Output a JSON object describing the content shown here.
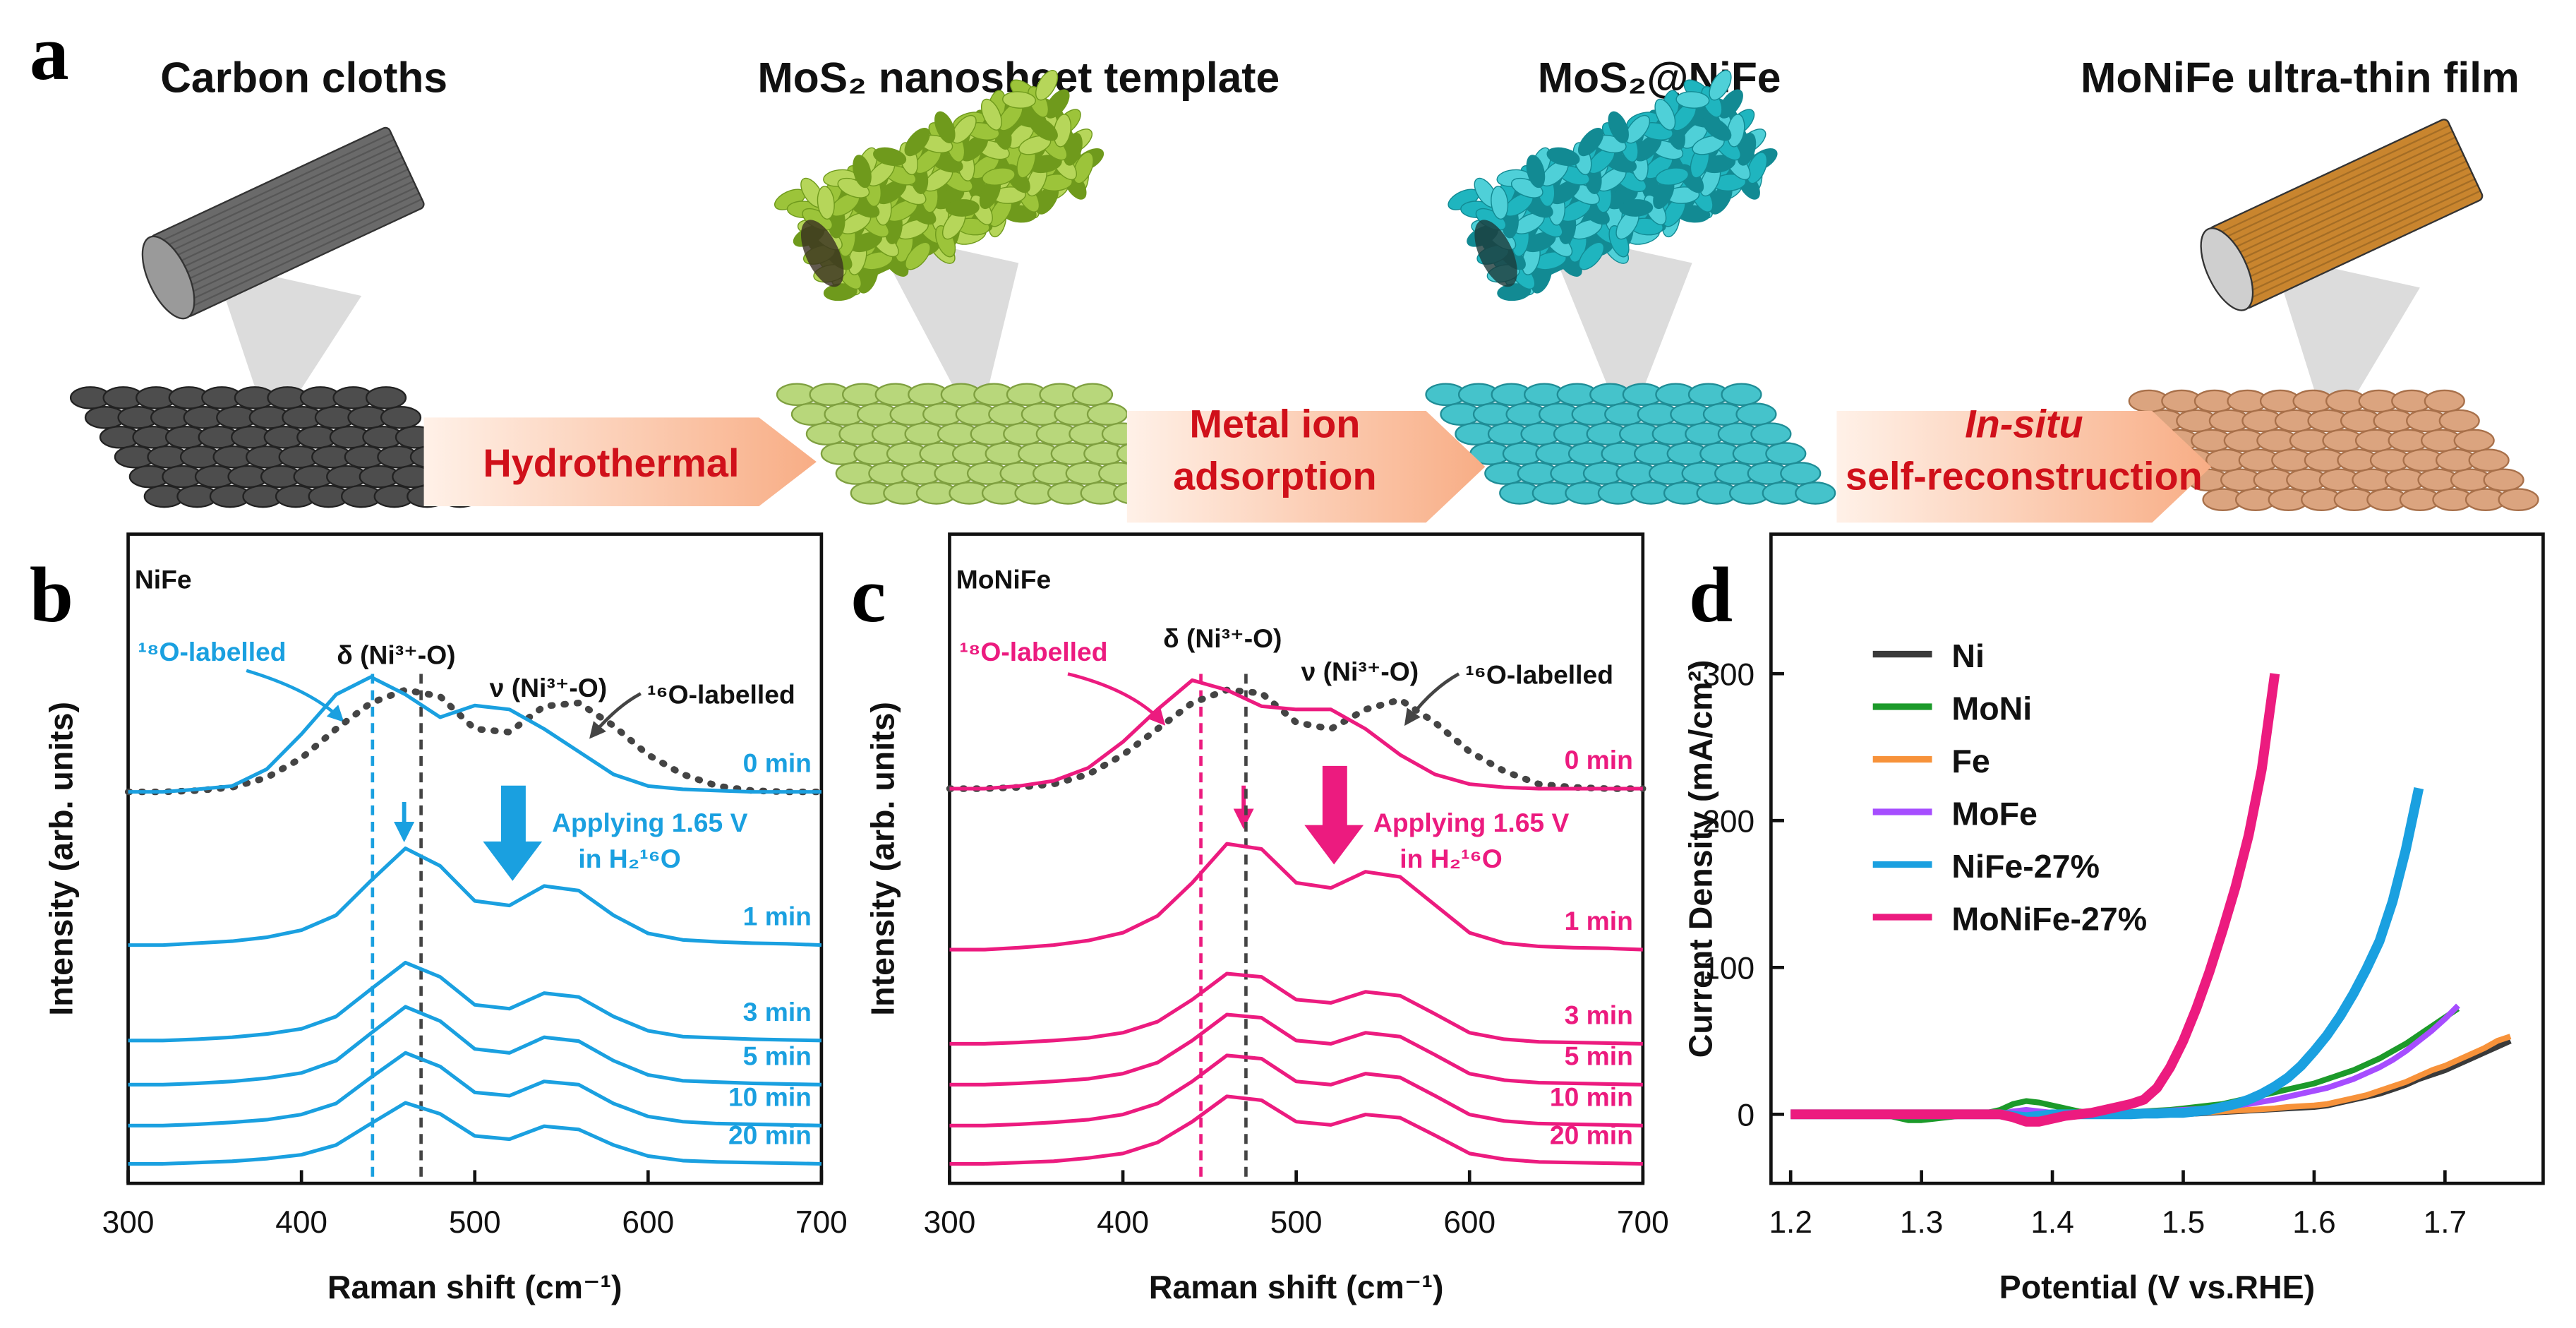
{
  "panel_a": {
    "label": "a",
    "stages": [
      "Carbon cloths",
      "MoS₂ nanosheet template",
      "MoS₂@NiFe",
      "MoNiFe ultra-thin film"
    ],
    "arrows": [
      {
        "lines": [
          "Hydrothermal"
        ]
      },
      {
        "lines": [
          "Metal ion",
          "adsorption"
        ]
      },
      {
        "lines": [
          "In-situ",
          "self-reconstruction"
        ]
      }
    ]
  },
  "chart_data": [
    {
      "type": "line",
      "label": "b",
      "title": "NiFe",
      "xlabel": "Raman shift (cm⁻¹)",
      "ylabel": "Intensity (arb. units)",
      "x": [
        300,
        320,
        340,
        360,
        380,
        400,
        420,
        440,
        460,
        480,
        500,
        520,
        540,
        560,
        580,
        600,
        620,
        640,
        660,
        680,
        700
      ],
      "xlim": [
        300,
        700
      ],
      "xticks": [
        300,
        400,
        500,
        600,
        700
      ],
      "ylim": [
        0,
        10
      ],
      "series_labels": "end",
      "series": [
        {
          "color": "#444444",
          "style": "dotted",
          "values": [
            6.03,
            6.03,
            6.05,
            6.1,
            6.25,
            6.55,
            7.0,
            7.4,
            7.6,
            7.5,
            7.0,
            6.95,
            7.35,
            7.4,
            7.05,
            6.6,
            6.3,
            6.12,
            6.05,
            6.03,
            6.03
          ]
        },
        {
          "name": "0 min",
          "color": "#1aa0e0",
          "values": [
            6.03,
            6.03,
            6.07,
            6.12,
            6.38,
            6.92,
            7.53,
            7.8,
            7.53,
            7.18,
            7.36,
            7.3,
            7.0,
            6.65,
            6.3,
            6.12,
            6.07,
            6.05,
            6.03,
            6.03,
            6.03
          ]
        },
        {
          "name": "1 min",
          "color": "#1aa0e0",
          "values": [
            3.67,
            3.67,
            3.7,
            3.73,
            3.79,
            3.9,
            4.13,
            4.66,
            5.16,
            4.89,
            4.35,
            4.28,
            4.58,
            4.51,
            4.13,
            3.85,
            3.75,
            3.72,
            3.7,
            3.69,
            3.67
          ]
        },
        {
          "name": "3 min",
          "color": "#1aa0e0",
          "values": [
            2.2,
            2.2,
            2.22,
            2.25,
            2.3,
            2.38,
            2.57,
            2.99,
            3.4,
            3.18,
            2.75,
            2.69,
            2.93,
            2.87,
            2.57,
            2.35,
            2.26,
            2.24,
            2.22,
            2.21,
            2.2
          ]
        },
        {
          "name": "5 min",
          "color": "#1aa0e0",
          "values": [
            1.52,
            1.52,
            1.54,
            1.57,
            1.62,
            1.7,
            1.89,
            2.31,
            2.72,
            2.5,
            2.07,
            2.01,
            2.25,
            2.19,
            1.89,
            1.67,
            1.58,
            1.56,
            1.54,
            1.53,
            1.52
          ]
        },
        {
          "name": "10 min",
          "color": "#1aa0e0",
          "values": [
            0.89,
            0.89,
            0.91,
            0.94,
            0.98,
            1.06,
            1.23,
            1.63,
            2.01,
            1.8,
            1.4,
            1.35,
            1.57,
            1.52,
            1.23,
            1.03,
            0.95,
            0.92,
            0.91,
            0.9,
            0.89
          ]
        },
        {
          "name": "20 min",
          "color": "#1aa0e0",
          "values": [
            0.3,
            0.3,
            0.32,
            0.34,
            0.38,
            0.44,
            0.59,
            0.92,
            1.24,
            1.07,
            0.73,
            0.68,
            0.88,
            0.83,
            0.59,
            0.42,
            0.35,
            0.33,
            0.32,
            0.31,
            0.3
          ]
        }
      ],
      "vlines": [
        {
          "x": 441,
          "color": "#1aa0e0"
        },
        {
          "x": 469,
          "color": "#444444"
        }
      ],
      "annotations": [
        "¹⁸O-labelled",
        "δ (Ni³⁺-O)",
        "ν (Ni³⁺-O)",
        "¹⁶O-labelled",
        "Applying 1.65 V",
        "in H₂¹⁶O"
      ]
    },
    {
      "type": "line",
      "label": "c",
      "title": "MoNiFe",
      "xlabel": "Raman shift (cm⁻¹)",
      "ylabel": "Intensity (arb. units)",
      "x": [
        300,
        320,
        340,
        360,
        380,
        400,
        420,
        440,
        460,
        480,
        500,
        520,
        540,
        560,
        580,
        600,
        620,
        640,
        660,
        680,
        700
      ],
      "xlim": [
        300,
        700
      ],
      "xticks": [
        300,
        400,
        500,
        600,
        700
      ],
      "ylim": [
        0,
        10
      ],
      "series_labels": "end",
      "series": [
        {
          "color": "#444444",
          "style": "dotted",
          "values": [
            6.08,
            6.08,
            6.1,
            6.15,
            6.3,
            6.6,
            7.0,
            7.4,
            7.6,
            7.55,
            7.1,
            7.0,
            7.3,
            7.45,
            7.1,
            6.65,
            6.35,
            6.15,
            6.1,
            6.08,
            6.08
          ]
        },
        {
          "name": "0 min",
          "color": "#ec1b7f",
          "values": [
            6.08,
            6.08,
            6.12,
            6.2,
            6.4,
            6.8,
            7.3,
            7.75,
            7.6,
            7.35,
            7.3,
            7.3,
            7.0,
            6.6,
            6.3,
            6.15,
            6.1,
            6.08,
            6.08,
            6.08,
            6.08
          ]
        },
        {
          "name": "1 min",
          "color": "#ec1b7f",
          "values": [
            3.6,
            3.6,
            3.63,
            3.67,
            3.74,
            3.86,
            4.12,
            4.63,
            5.23,
            5.15,
            4.63,
            4.55,
            4.8,
            4.72,
            4.29,
            3.86,
            3.7,
            3.65,
            3.63,
            3.62,
            3.6
          ]
        },
        {
          "name": "3 min",
          "color": "#ec1b7f",
          "values": [
            2.15,
            2.15,
            2.17,
            2.2,
            2.24,
            2.32,
            2.49,
            2.83,
            3.23,
            3.18,
            2.83,
            2.78,
            2.95,
            2.89,
            2.61,
            2.32,
            2.22,
            2.18,
            2.17,
            2.16,
            2.15
          ]
        },
        {
          "name": "5 min",
          "color": "#ec1b7f",
          "values": [
            1.52,
            1.52,
            1.54,
            1.57,
            1.61,
            1.69,
            1.86,
            2.2,
            2.6,
            2.55,
            2.2,
            2.15,
            2.32,
            2.26,
            1.98,
            1.69,
            1.59,
            1.55,
            1.54,
            1.53,
            1.52
          ]
        },
        {
          "name": "10 min",
          "color": "#ec1b7f",
          "values": [
            0.89,
            0.89,
            0.91,
            0.94,
            0.98,
            1.06,
            1.23,
            1.57,
            1.97,
            1.92,
            1.57,
            1.52,
            1.69,
            1.63,
            1.35,
            1.06,
            0.96,
            0.92,
            0.91,
            0.9,
            0.89
          ]
        },
        {
          "name": "20 min",
          "color": "#ec1b7f",
          "values": [
            0.3,
            0.3,
            0.32,
            0.34,
            0.39,
            0.46,
            0.63,
            0.95,
            1.34,
            1.28,
            0.95,
            0.9,
            1.06,
            1.01,
            0.74,
            0.46,
            0.37,
            0.33,
            0.32,
            0.31,
            0.3
          ]
        }
      ],
      "vlines": [
        {
          "x": 445,
          "color": "#ec1b7f"
        },
        {
          "x": 471,
          "color": "#444444"
        }
      ],
      "annotations": [
        "¹⁸O-labelled",
        "δ (Ni³⁺-O)",
        "ν (Ni³⁺-O)",
        "¹⁶O-labelled",
        "Applying 1.65 V",
        "in H₂¹⁶O"
      ]
    },
    {
      "type": "line",
      "label": "d",
      "xlabel": "Potential (V vs.RHE)",
      "ylabel": "Current Density (mA/cm²)",
      "x": [
        1.2,
        1.21,
        1.22,
        1.23,
        1.24,
        1.25,
        1.26,
        1.27,
        1.28,
        1.29,
        1.3,
        1.31,
        1.32,
        1.33,
        1.34,
        1.35,
        1.36,
        1.37,
        1.38,
        1.39,
        1.4,
        1.41,
        1.42,
        1.43,
        1.44,
        1.45,
        1.46,
        1.47,
        1.48,
        1.49,
        1.5,
        1.51,
        1.52,
        1.53,
        1.54,
        1.55,
        1.56,
        1.57,
        1.58,
        1.59,
        1.6,
        1.61,
        1.62,
        1.63,
        1.64,
        1.65,
        1.66,
        1.67,
        1.68,
        1.69,
        1.7,
        1.71,
        1.72,
        1.73,
        1.74,
        1.75
      ],
      "xlim": [
        1.185,
        1.775
      ],
      "xticks": [
        1.2,
        1.3,
        1.4,
        1.5,
        1.6,
        1.7
      ],
      "ylim": [
        -47,
        395
      ],
      "yticks": [
        0,
        100,
        200,
        300
      ],
      "legend": "upper left",
      "series": [
        {
          "name": "Ni",
          "color": "#3a3a3a",
          "values": [
            0,
            0,
            0,
            0,
            0,
            0,
            0,
            0,
            0,
            0,
            0,
            0,
            0,
            0,
            0,
            0,
            0,
            0,
            0,
            0,
            0,
            0,
            0,
            0,
            0,
            0,
            0,
            0,
            0,
            0,
            0,
            0.5,
            1,
            1.5,
            2,
            2.5,
            3,
            3.5,
            4,
            4.5,
            5,
            6,
            8,
            10,
            12,
            14,
            17,
            20,
            24,
            27,
            30,
            34,
            38,
            42,
            46,
            50
          ]
        },
        {
          "name": "MoNi",
          "color": "#1c9a2a",
          "values": [
            0,
            0,
            0,
            0,
            0,
            0,
            0,
            0,
            -2,
            -4,
            -4,
            -3,
            -2,
            -1,
            0,
            1,
            3,
            7,
            9,
            8,
            6,
            4,
            2,
            1,
            1,
            1,
            1.5,
            2,
            2.5,
            3,
            4,
            5,
            6,
            7,
            9,
            11,
            13,
            15,
            17,
            19,
            21,
            24,
            27,
            30,
            34,
            38,
            43,
            48,
            54,
            60,
            66,
            72,
            null,
            null,
            null,
            null
          ]
        },
        {
          "name": "Fe",
          "color": "#f7923a",
          "values": [
            0,
            0,
            0,
            0,
            0,
            0,
            0,
            0,
            0,
            0,
            0,
            0,
            0,
            0,
            0,
            0,
            0,
            0,
            0,
            0,
            0,
            0,
            0,
            0,
            0,
            0,
            0,
            0,
            0,
            0,
            0,
            1,
            1.5,
            2,
            2.5,
            3,
            3.5,
            4,
            5,
            5.5,
            6,
            7,
            9,
            11,
            13,
            16,
            19,
            22,
            26,
            30,
            33,
            37,
            41,
            45,
            50,
            53
          ]
        },
        {
          "name": "MoFe",
          "color": "#a64dff",
          "values": [
            0,
            0,
            0,
            0,
            0,
            0,
            0,
            0,
            0,
            0,
            0,
            0,
            0,
            0,
            0,
            0,
            0,
            2,
            3,
            2,
            1,
            1,
            1,
            1,
            1,
            1,
            1,
            1.5,
            2,
            2.5,
            3,
            3.5,
            4,
            5,
            6,
            7,
            8.5,
            10,
            12,
            14,
            16,
            18,
            21,
            24,
            28,
            32,
            37,
            43,
            50,
            57,
            65,
            74,
            null,
            null,
            null,
            null
          ]
        },
        {
          "name": "NiFe-27%",
          "color": "#1aa0e0",
          "values": [
            0,
            0,
            0,
            0,
            0,
            0,
            0,
            0,
            0,
            0,
            0,
            0,
            0,
            0,
            0,
            0,
            0,
            -1,
            -2,
            -1,
            0,
            0,
            0,
            0,
            0,
            0,
            0,
            0.5,
            0.5,
            1,
            1,
            2,
            3,
            5,
            7,
            10,
            14,
            19,
            25,
            33,
            43,
            54,
            67,
            82,
            99,
            118,
            145,
            180,
            222,
            null,
            null,
            null,
            null,
            null,
            null,
            null
          ]
        },
        {
          "name": "MoNiFe-27%",
          "color": "#ec1b7f",
          "values": [
            0,
            0,
            0,
            0,
            0,
            0,
            0,
            0,
            0,
            0,
            0,
            0,
            0,
            0,
            0,
            0,
            0,
            -2,
            -5,
            -5,
            -3,
            -1,
            0,
            1,
            3,
            5,
            7,
            10,
            18,
            32,
            50,
            72,
            97,
            125,
            155,
            190,
            235,
            300,
            null,
            null,
            null,
            null,
            null,
            null,
            null,
            null,
            null,
            null,
            null,
            null,
            null,
            null,
            null,
            null,
            null,
            null
          ]
        }
      ]
    }
  ]
}
